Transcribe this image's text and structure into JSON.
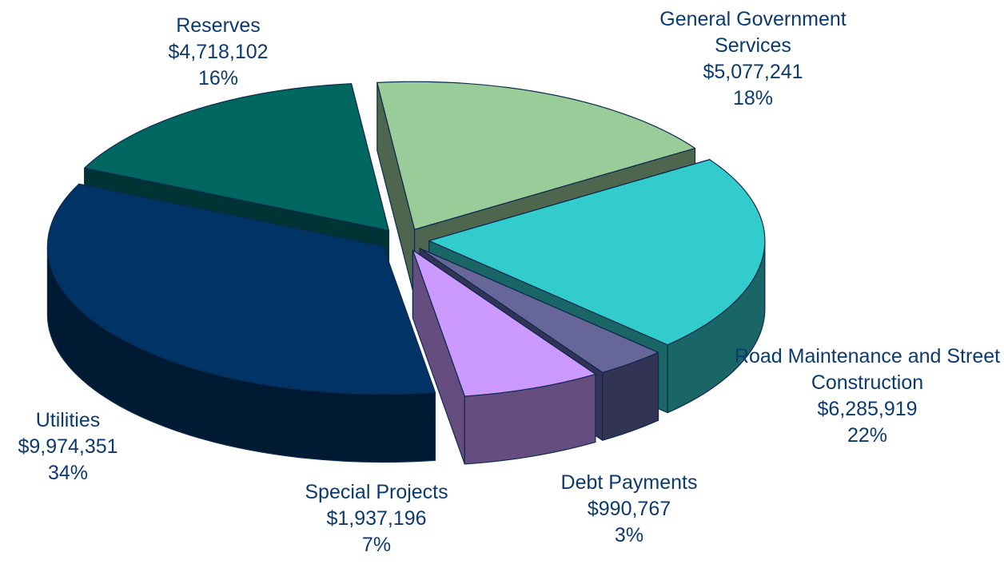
{
  "chart_data": {
    "type": "pie3d",
    "categories": [
      "Reserves",
      "General Government Services",
      "Road Maintenance and Street Construction",
      "Debt Payments",
      "Special Projects",
      "Utilities"
    ],
    "values": [
      4718102,
      5077241,
      6285919,
      990767,
      1937196,
      9974351
    ],
    "value_labels": [
      "$4,718,102",
      "$5,077,241",
      "$6,285,919",
      "$990,767",
      "$1,937,196",
      "$9,974,351"
    ],
    "percent_labels": [
      "16%",
      "18%",
      "22%",
      "3%",
      "7%",
      "34%"
    ],
    "colors": [
      "#006660",
      "#99cc99",
      "#33cccc",
      "#666699",
      "#cc99ff",
      "#003366"
    ],
    "side_colors": [
      "#003333",
      "#4d664d",
      "#1a6666",
      "#333355",
      "#664d80",
      "#001a33"
    ]
  }
}
